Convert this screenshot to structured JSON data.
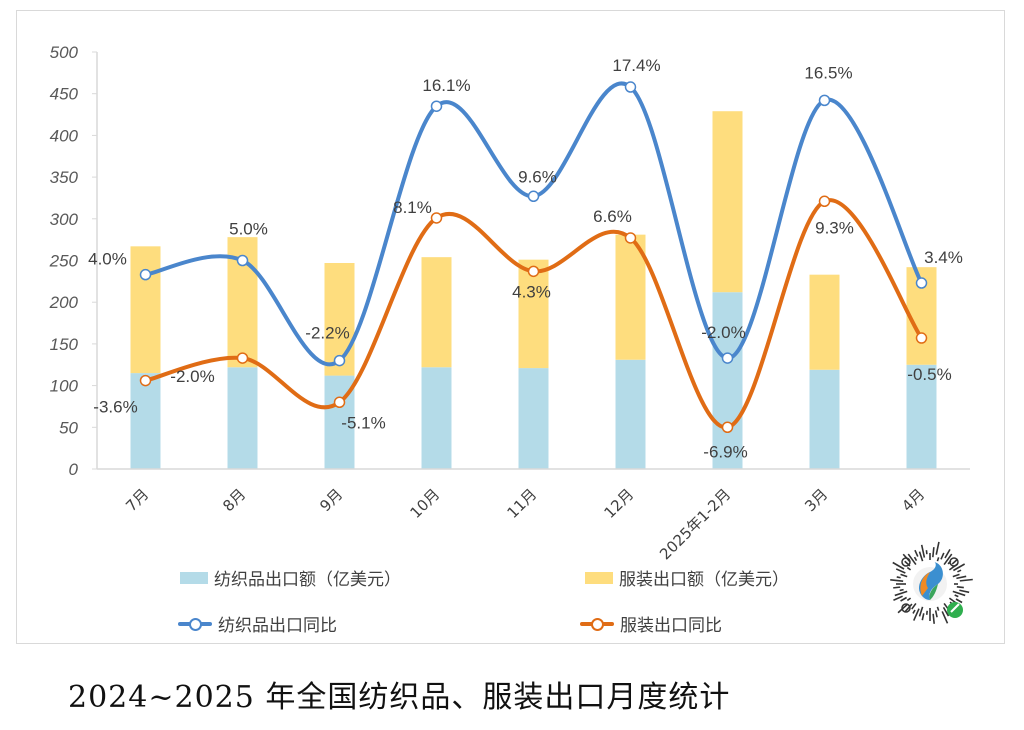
{
  "chart_data": {
    "type": "bar",
    "title": "",
    "xlabel": "",
    "ylabel": "",
    "ylim": [
      0,
      500
    ],
    "yticks": [
      0,
      50,
      100,
      150,
      200,
      250,
      300,
      350,
      400,
      450,
      500
    ],
    "grid": false,
    "legend_position": "bottom",
    "categories": [
      "7月",
      "8月",
      "9月",
      "10月",
      "11月",
      "12月",
      "2025年1-2月",
      "3月",
      "4月"
    ],
    "series": [
      {
        "name": "纺织品出口额（亿美元）",
        "kind": "bar-stacked",
        "color": "#b4dbe8",
        "values": [
          115,
          122,
          112,
          122,
          121,
          131,
          212,
          119,
          125
        ]
      },
      {
        "name": "服装出口额（亿美元）",
        "kind": "bar-stacked",
        "color": "#fedd7e",
        "values": [
          152,
          156,
          135,
          132,
          130,
          150,
          217,
          114,
          117
        ]
      },
      {
        "name": "纺织品出口同比",
        "kind": "line",
        "color": "#4a86cc",
        "plot_positions": [
          233,
          250,
          130,
          435,
          327,
          458,
          133,
          442,
          223
        ],
        "labels": [
          "4.0%",
          "5.0%",
          "-2.2%",
          "16.1%",
          "9.6%",
          "17.4%",
          "-2.0%",
          "16.5%",
          "3.4%"
        ],
        "values_pct": [
          4.0,
          5.0,
          -2.2,
          16.1,
          9.6,
          17.4,
          -2.0,
          16.5,
          3.4
        ]
      },
      {
        "name": "服装出口同比",
        "kind": "line",
        "color": "#e06c15",
        "plot_positions": [
          106,
          133,
          80,
          301,
          237,
          277,
          50,
          321,
          157
        ],
        "labels": [
          "-3.6%",
          "-2.0%",
          "-5.1%",
          "8.1%",
          "4.3%",
          "6.6%",
          "-6.9%",
          "9.3%",
          "-0.5%"
        ],
        "values_pct": [
          -3.6,
          -2.0,
          -5.1,
          8.1,
          4.3,
          6.6,
          -6.9,
          9.3,
          -0.5
        ]
      }
    ]
  },
  "legend": {
    "textile_value": "纺织品出口额（亿美元）",
    "apparel_value": "服装出口额（亿美元）",
    "textile_yoy": "纺织品出口同比",
    "apparel_yoy": "服装出口同比"
  },
  "caption": "2024~2025 年全国纺织品、服装出口月度统计",
  "qr_icon": "mini-program-qr-code"
}
